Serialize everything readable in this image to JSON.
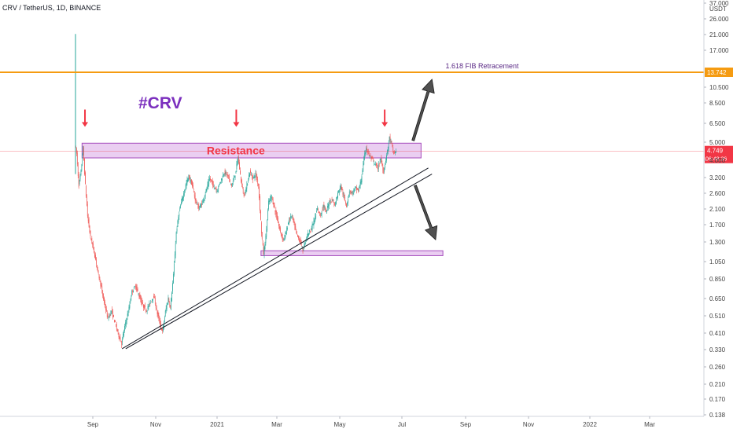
{
  "chart_data": {
    "type": "candlestick",
    "legend": "CRV / TetherUS, 1D, BINANCE",
    "scale": "log",
    "y_unit": "USDT",
    "x_ticks": [
      "Sep",
      "Nov",
      "2021",
      "Mar",
      "May",
      "Jul",
      "Sep",
      "Nov",
      "2022",
      "Mar"
    ],
    "y_ticks": [
      "37.000",
      "26.000",
      "21.000",
      "17.000",
      "10.500",
      "8.500",
      "6.500",
      "5.000",
      "4.000",
      "3.200",
      "2.600",
      "2.100",
      "1.700",
      "1.300",
      "1.050",
      "0.850",
      "0.650",
      "0.510",
      "0.410",
      "0.330",
      "0.260",
      "0.210",
      "0.170",
      "0.138"
    ],
    "ylim": [
      0.13,
      40
    ],
    "price_path": [
      {
        "t": 0,
        "p": 5.2
      },
      {
        "t": 2,
        "p": 4.6
      },
      {
        "t": 5,
        "p": 3.0
      },
      {
        "t": 8,
        "p": 3.6
      },
      {
        "t": 11,
        "p": 5.0
      },
      {
        "t": 14,
        "p": 3.0
      },
      {
        "t": 17,
        "p": 2.0
      },
      {
        "t": 21,
        "p": 1.5
      },
      {
        "t": 25,
        "p": 1.3
      },
      {
        "t": 30,
        "p": 1.0
      },
      {
        "t": 35,
        "p": 0.8
      },
      {
        "t": 40,
        "p": 0.62
      },
      {
        "t": 45,
        "p": 0.5
      },
      {
        "t": 50,
        "p": 0.56
      },
      {
        "t": 55,
        "p": 0.47
      },
      {
        "t": 60,
        "p": 0.4
      },
      {
        "t": 64,
        "p": 0.36
      },
      {
        "t": 68,
        "p": 0.45
      },
      {
        "t": 73,
        "p": 0.55
      },
      {
        "t": 78,
        "p": 0.72
      },
      {
        "t": 83,
        "p": 0.78
      },
      {
        "t": 88,
        "p": 0.68
      },
      {
        "t": 93,
        "p": 0.6
      },
      {
        "t": 98,
        "p": 0.56
      },
      {
        "t": 103,
        "p": 0.62
      },
      {
        "t": 108,
        "p": 0.68
      },
      {
        "t": 112,
        "p": 0.56
      },
      {
        "t": 116,
        "p": 0.48
      },
      {
        "t": 120,
        "p": 0.42
      },
      {
        "t": 124,
        "p": 0.55
      },
      {
        "t": 128,
        "p": 0.66
      },
      {
        "t": 131,
        "p": 0.58
      },
      {
        "t": 135,
        "p": 0.9
      },
      {
        "t": 139,
        "p": 1.6
      },
      {
        "t": 143,
        "p": 2.1
      },
      {
        "t": 147,
        "p": 2.5
      },
      {
        "t": 152,
        "p": 3.0
      },
      {
        "t": 156,
        "p": 3.4
      },
      {
        "t": 160,
        "p": 3.1
      },
      {
        "t": 165,
        "p": 2.5
      },
      {
        "t": 170,
        "p": 2.2
      },
      {
        "t": 175,
        "p": 2.4
      },
      {
        "t": 180,
        "p": 2.8
      },
      {
        "t": 185,
        "p": 3.3
      },
      {
        "t": 190,
        "p": 3.0
      },
      {
        "t": 195,
        "p": 2.8
      },
      {
        "t": 200,
        "p": 3.2
      },
      {
        "t": 205,
        "p": 3.6
      },
      {
        "t": 210,
        "p": 3.4
      },
      {
        "t": 215,
        "p": 3.0
      },
      {
        "t": 220,
        "p": 3.5
      },
      {
        "t": 224,
        "p": 4.4
      },
      {
        "t": 228,
        "p": 3.2
      },
      {
        "t": 232,
        "p": 2.6
      },
      {
        "t": 236,
        "p": 3.0
      },
      {
        "t": 240,
        "p": 3.6
      },
      {
        "t": 244,
        "p": 3.3
      },
      {
        "t": 248,
        "p": 3.5
      },
      {
        "t": 252,
        "p": 3.0
      },
      {
        "t": 256,
        "p": 1.6
      },
      {
        "t": 259,
        "p": 1.2
      },
      {
        "t": 262,
        "p": 1.5
      },
      {
        "t": 266,
        "p": 2.4
      },
      {
        "t": 270,
        "p": 2.6
      },
      {
        "t": 274,
        "p": 2.2
      },
      {
        "t": 278,
        "p": 1.9
      },
      {
        "t": 282,
        "p": 1.6
      },
      {
        "t": 286,
        "p": 1.45
      },
      {
        "t": 290,
        "p": 1.6
      },
      {
        "t": 294,
        "p": 1.9
      },
      {
        "t": 298,
        "p": 2.0
      },
      {
        "t": 302,
        "p": 1.7
      },
      {
        "t": 306,
        "p": 1.5
      },
      {
        "t": 310,
        "p": 1.4
      },
      {
        "t": 313,
        "p": 1.25
      },
      {
        "t": 317,
        "p": 1.45
      },
      {
        "t": 321,
        "p": 1.6
      },
      {
        "t": 325,
        "p": 1.7
      },
      {
        "t": 329,
        "p": 1.9
      },
      {
        "t": 333,
        "p": 2.2
      },
      {
        "t": 337,
        "p": 2.0
      },
      {
        "t": 341,
        "p": 2.3
      },
      {
        "t": 345,
        "p": 2.1
      },
      {
        "t": 349,
        "p": 2.4
      },
      {
        "t": 353,
        "p": 2.5
      },
      {
        "t": 357,
        "p": 2.3
      },
      {
        "t": 361,
        "p": 2.7
      },
      {
        "t": 365,
        "p": 3.0
      },
      {
        "t": 369,
        "p": 2.6
      },
      {
        "t": 373,
        "p": 2.3
      },
      {
        "t": 377,
        "p": 2.8
      },
      {
        "t": 381,
        "p": 2.7
      },
      {
        "t": 385,
        "p": 2.9
      },
      {
        "t": 389,
        "p": 2.8
      },
      {
        "t": 393,
        "p": 3.2
      },
      {
        "t": 397,
        "p": 4.3
      },
      {
        "t": 400,
        "p": 5.0
      },
      {
        "t": 404,
        "p": 4.5
      },
      {
        "t": 408,
        "p": 4.3
      },
      {
        "t": 412,
        "p": 4.0
      },
      {
        "t": 416,
        "p": 3.8
      },
      {
        "t": 420,
        "p": 4.3
      },
      {
        "t": 424,
        "p": 3.6
      },
      {
        "t": 428,
        "p": 4.5
      },
      {
        "t": 432,
        "p": 5.7
      },
      {
        "t": 435,
        "p": 5.2
      },
      {
        "t": 438,
        "p": 4.6
      },
      {
        "t": 441,
        "p": 4.75
      }
    ],
    "spike": {
      "t": 0,
      "high": 23
    },
    "horizontal_line": {
      "price": 13.742,
      "label": "1.618 FIB Retracement",
      "price_label": "13.742",
      "color": "#f59b11"
    },
    "zones": [
      {
        "label": "Resistance",
        "top": 5.3,
        "bottom": 4.35,
        "t_start": 9,
        "t_end": 475
      },
      {
        "label": "",
        "top": 1.25,
        "bottom": 1.17,
        "t_start": 255,
        "t_end": 505
      }
    ],
    "trendlines": [
      {
        "t1": 64,
        "p1": 0.335,
        "t2": 485,
        "p2": 3.8
      },
      {
        "t1": 69,
        "p1": 0.335,
        "t2": 490,
        "p2": 3.5
      }
    ],
    "red_arrows": [
      {
        "t": 13,
        "p": 6.6
      },
      {
        "t": 221,
        "p": 6.6
      },
      {
        "t": 425,
        "p": 6.6
      }
    ],
    "projection_arrows": [
      {
        "direction": "up",
        "t1": 464,
        "p1": 5.5,
        "t2": 490,
        "p2": 12.5
      },
      {
        "direction": "down",
        "t1": 467,
        "p1": 3.0,
        "t2": 495,
        "p2": 1.45
      }
    ],
    "annotation": "#CRV",
    "current_price": {
      "value": "4.749",
      "countdown": "06:48:36",
      "price": 4.749,
      "color": "#f23645"
    },
    "colors": {
      "up": "#26a69a",
      "down": "#ef5350",
      "zone_fill": "#e6c6ef",
      "zone_stroke": "#a64dbd",
      "annotation": "#7b2fbe",
      "resistance_text": "#f23645"
    }
  }
}
